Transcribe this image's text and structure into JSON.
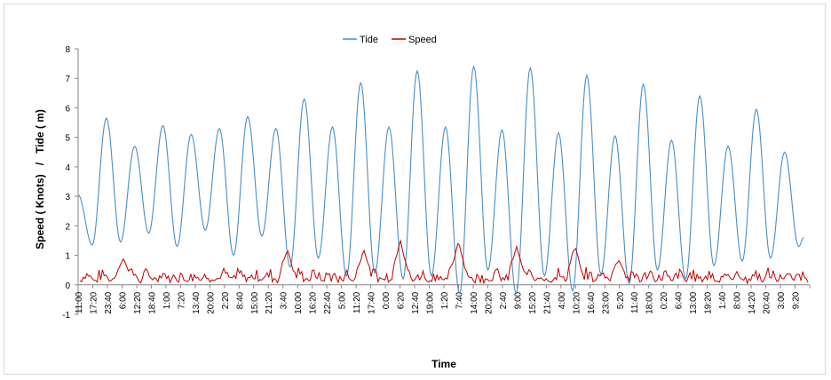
{
  "chart_data": {
    "type": "line",
    "title": "",
    "xlabel": "Time",
    "ylabel": "Speed ( Knots)   /   Tide ( m)",
    "ylim": [
      -1,
      8
    ],
    "yticks": [
      -1,
      0,
      1,
      2,
      3,
      4,
      5,
      6,
      7,
      8
    ],
    "grid": false,
    "legend_position": "top-center",
    "x_tick_labels": [
      "11:00",
      "17:20",
      "23:40",
      "6:00",
      "12:20",
      "18:40",
      "1:00",
      "7:20",
      "13:40",
      "20:00",
      "2:20",
      "8:40",
      "15:00",
      "21:20",
      "3:40",
      "10:00",
      "16:20",
      "22:40",
      "5:00",
      "11:20",
      "17:40",
      "0:00",
      "6:20",
      "12:40",
      "19:00",
      "1:20",
      "7:40",
      "14:00",
      "20:20",
      "2:40",
      "9:00",
      "15:20",
      "21:40",
      "4:00",
      "10:20",
      "16:40",
      "23:00",
      "5:20",
      "11:40",
      "18:00",
      "0:20",
      "6:40",
      "13:00",
      "19:20",
      "1:40",
      "8:00",
      "14:20",
      "20:40",
      "3:00",
      "9:20"
    ],
    "series": [
      {
        "name": "Tide",
        "color": "#4a8fc4",
        "extrema": [
          3.05,
          1.35,
          5.65,
          1.45,
          4.7,
          1.75,
          5.4,
          1.3,
          5.1,
          1.85,
          5.3,
          1.0,
          5.7,
          1.65,
          5.3,
          0.6,
          6.3,
          0.9,
          5.35,
          0.3,
          6.85,
          0.4,
          5.35,
          0.2,
          7.25,
          0.3,
          5.35,
          -0.3,
          7.4,
          0.5,
          5.25,
          -0.3,
          7.35,
          0.3,
          5.15,
          -0.2,
          7.1,
          0.35,
          5.05,
          0.05,
          6.8,
          0.5,
          4.9,
          0.2,
          6.4,
          0.65,
          4.7,
          0.8,
          5.95,
          0.9,
          4.5,
          1.3,
          1.6
        ]
      },
      {
        "name": "Speed",
        "color": "#c00000",
        "typical_range": [
          0,
          0.8
        ],
        "peak_values": [
          0.9,
          1.2,
          1.2,
          1.55,
          1.5,
          1.3,
          1.3,
          0.85
        ]
      }
    ]
  }
}
